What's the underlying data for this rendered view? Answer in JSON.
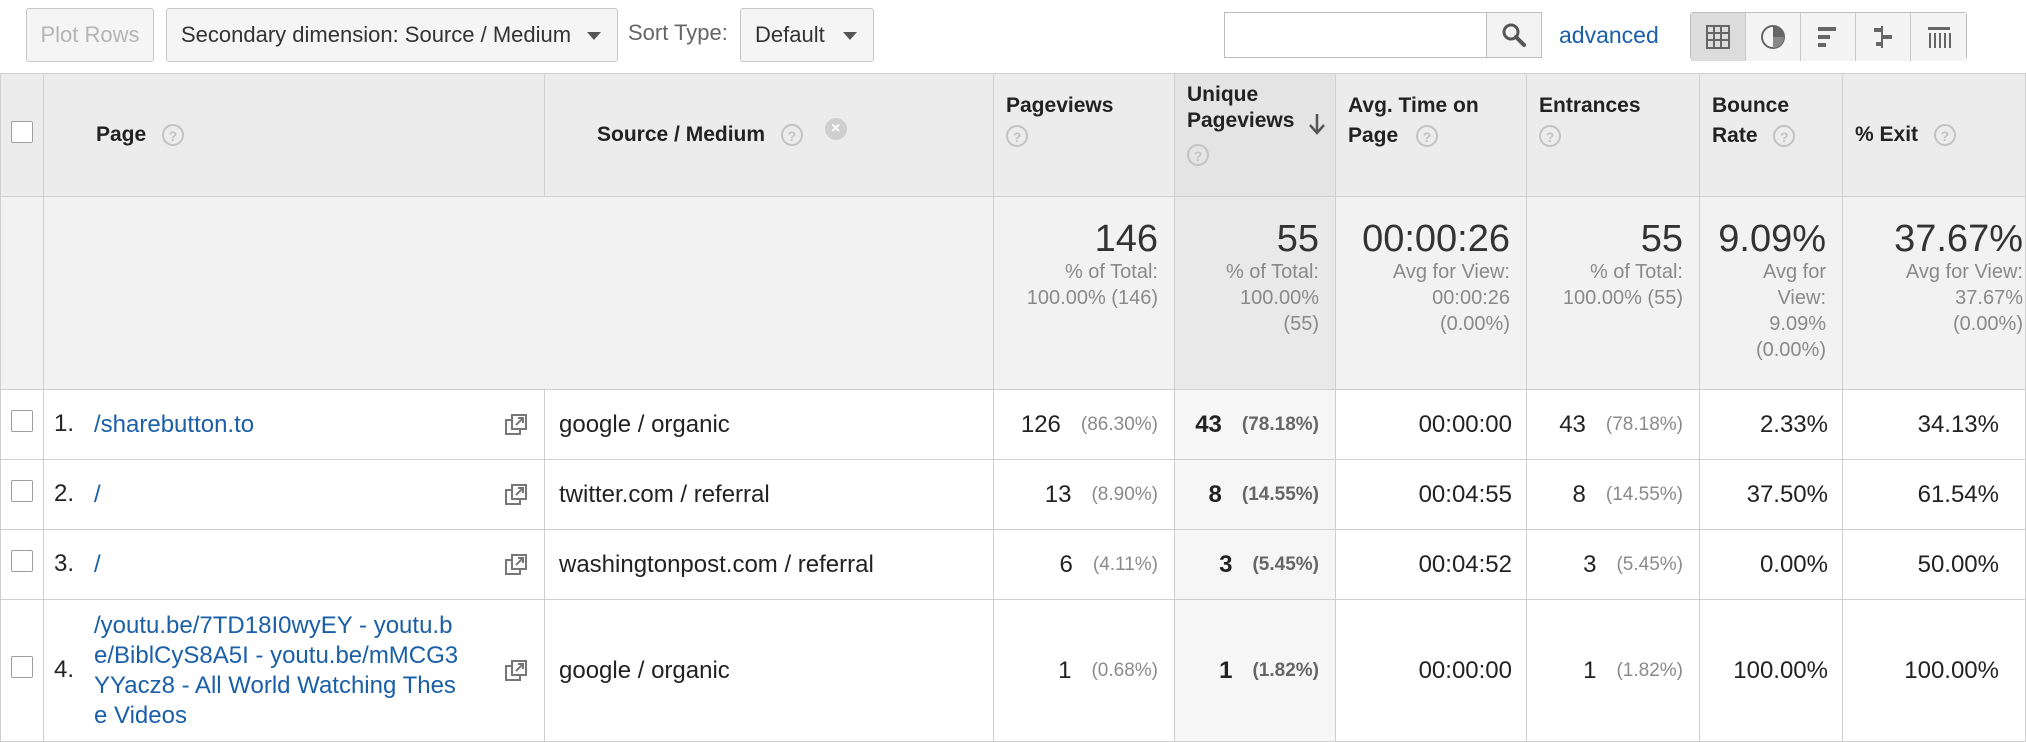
{
  "toolbar": {
    "plot_rows": "Plot Rows",
    "secondary_dimension": "Secondary dimension: Source / Medium",
    "sort_type_label": "Sort Type:",
    "sort_type_value": "Default",
    "search_value": "",
    "advanced": "advanced",
    "view_icons": [
      "table-view-icon",
      "pie-view-icon",
      "bar-view-icon",
      "comparison-view-icon",
      "pivot-view-icon"
    ]
  },
  "columns": {
    "page": "Page",
    "source_medium": "Source / Medium",
    "pageviews": "Pageviews",
    "unique_pageviews_1": "Unique",
    "unique_pageviews_2": "Pageviews",
    "avg_time_1": "Avg. Time on",
    "avg_time_2": "Page",
    "entrances": "Entrances",
    "bounce_rate_1": "Bounce",
    "bounce_rate_2": "Rate",
    "exit": "% Exit"
  },
  "totals": {
    "pageviews": {
      "value": "146",
      "l1": "% of Total:",
      "l2": "100.00% (146)"
    },
    "unique": {
      "value": "55",
      "l1": "% of Total:",
      "l2": "100.00%",
      "l3": "(55)"
    },
    "avg_time": {
      "value": "00:00:26",
      "l1": "Avg for View:",
      "l2": "00:00:26",
      "l3": "(0.00%)"
    },
    "entrances": {
      "value": "55",
      "l1": "% of Total:",
      "l2": "100.00% (55)"
    },
    "bounce": {
      "value": "9.09%",
      "l1": "Avg for",
      "l2": "View:",
      "l3": "9.09%",
      "l4": "(0.00%)"
    },
    "exit": {
      "value": "37.67%",
      "l1": "Avg for View:",
      "l2": "37.67%",
      "l3": "(0.00%)"
    }
  },
  "rows": [
    {
      "idx": "1.",
      "page": "/sharebutton.to",
      "source": "google / organic",
      "pv": "126",
      "pv_pct": "(86.30%)",
      "upv": "43",
      "upv_pct": "(78.18%)",
      "time": "00:00:00",
      "ent": "43",
      "ent_pct": "(78.18%)",
      "bounce": "2.33%",
      "exit": "34.13%"
    },
    {
      "idx": "2.",
      "page": "/",
      "source": "twitter.com / referral",
      "pv": "13",
      "pv_pct": "(8.90%)",
      "upv": "8",
      "upv_pct": "(14.55%)",
      "time": "00:04:55",
      "ent": "8",
      "ent_pct": "(14.55%)",
      "bounce": "37.50%",
      "exit": "61.54%"
    },
    {
      "idx": "3.",
      "page": "/",
      "source": "washingtonpost.com / referral",
      "pv": "6",
      "pv_pct": "(4.11%)",
      "upv": "3",
      "upv_pct": "(5.45%)",
      "time": "00:04:52",
      "ent": "3",
      "ent_pct": "(5.45%)",
      "bounce": "0.00%",
      "exit": "50.00%"
    },
    {
      "idx": "4.",
      "page_lines": [
        "/youtu.be/7TD18I0wyEY - youtu.b",
        "e/BiblCyS8A5I - youtu.be/mMCG3",
        "YYacz8 - All World Watching Thes",
        "e Videos"
      ],
      "source": "google / organic",
      "pv": "1",
      "pv_pct": "(0.68%)",
      "upv": "1",
      "upv_pct": "(1.82%)",
      "time": "00:00:00",
      "ent": "1",
      "ent_pct": "(1.82%)",
      "bounce": "100.00%",
      "exit": "100.00%"
    }
  ]
}
